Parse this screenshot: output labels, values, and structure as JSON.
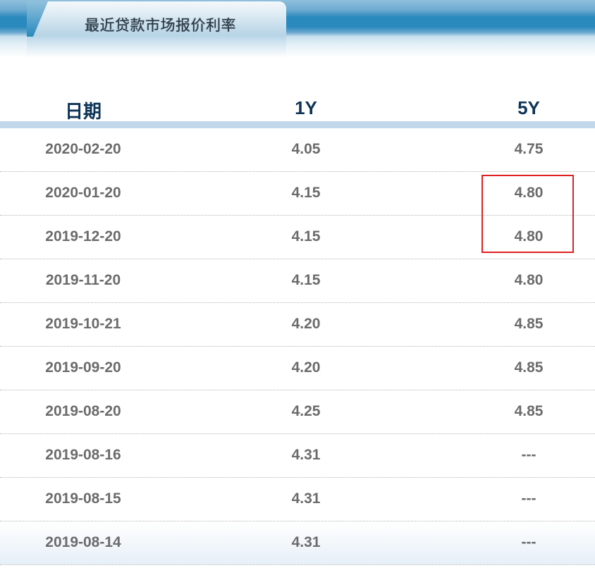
{
  "tab": {
    "title": "最近贷款市场报价利率"
  },
  "table": {
    "headers": [
      "日期",
      "1Y",
      "5Y"
    ],
    "rows": [
      [
        "2020-02-20",
        "4.05",
        "4.75"
      ],
      [
        "2020-01-20",
        "4.15",
        "4.80"
      ],
      [
        "2019-12-20",
        "4.15",
        "4.80"
      ],
      [
        "2019-11-20",
        "4.15",
        "4.80"
      ],
      [
        "2019-10-21",
        "4.20",
        "4.85"
      ],
      [
        "2019-09-20",
        "4.20",
        "4.85"
      ],
      [
        "2019-08-20",
        "4.25",
        "4.85"
      ],
      [
        "2019-08-16",
        "4.31",
        "---"
      ],
      [
        "2019-08-15",
        "4.31",
        "---"
      ],
      [
        "2019-08-14",
        "4.31",
        "---"
      ]
    ]
  },
  "highlight": {
    "color": "#e02020",
    "column": "5Y",
    "rows": [
      "2020-01-20",
      "2019-12-20"
    ]
  }
}
